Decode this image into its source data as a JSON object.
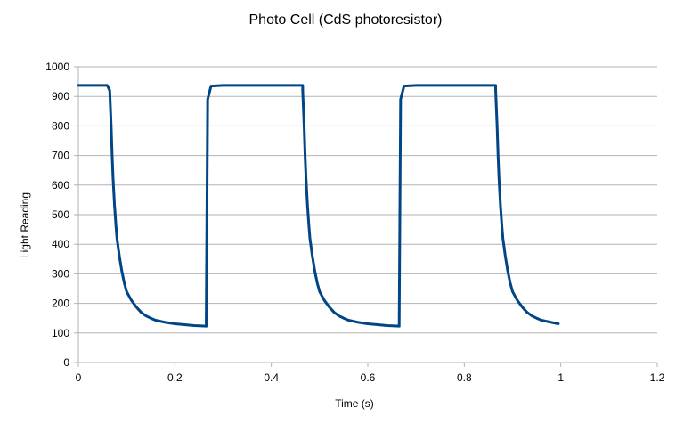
{
  "chart_data": {
    "type": "line",
    "title": "Photo Cell (CdS photoresistor)",
    "xlabel": "Time (s)",
    "ylabel": "Light Reading",
    "xlim": [
      0,
      1.2
    ],
    "ylim": [
      0,
      1000
    ],
    "x_ticks": [
      "0",
      "0.2",
      "0.4",
      "0.6",
      "0.8",
      "1",
      "1.2"
    ],
    "y_ticks": [
      "0",
      "100",
      "200",
      "300",
      "400",
      "500",
      "600",
      "700",
      "800",
      "900",
      "1000"
    ],
    "grid": "horizontal",
    "legend": "none",
    "series_color": "#004586",
    "series": [
      {
        "x": [
          0.0,
          0.02,
          0.04,
          0.06,
          0.065,
          0.068,
          0.07,
          0.072,
          0.075,
          0.078,
          0.08,
          0.085,
          0.09,
          0.095,
          0.1,
          0.11,
          0.12,
          0.13,
          0.14,
          0.15,
          0.16,
          0.18,
          0.2,
          0.22,
          0.24,
          0.265,
          0.265,
          0.268,
          0.275,
          0.3,
          0.35,
          0.4,
          0.44,
          0.465,
          0.465,
          0.468,
          0.47,
          0.472,
          0.475,
          0.478,
          0.48,
          0.485,
          0.49,
          0.495,
          0.5,
          0.51,
          0.52,
          0.53,
          0.54,
          0.55,
          0.56,
          0.58,
          0.6,
          0.62,
          0.64,
          0.665,
          0.665,
          0.668,
          0.675,
          0.7,
          0.75,
          0.8,
          0.84,
          0.865,
          0.865,
          0.868,
          0.87,
          0.872,
          0.875,
          0.878,
          0.88,
          0.885,
          0.89,
          0.895,
          0.9,
          0.91,
          0.92,
          0.93,
          0.94,
          0.95,
          0.96,
          0.98,
          0.995
        ],
        "y": [
          937,
          937,
          937,
          937,
          920,
          800,
          700,
          620,
          530,
          460,
          420,
          360,
          310,
          270,
          240,
          210,
          188,
          170,
          158,
          150,
          143,
          136,
          131,
          128,
          125,
          123,
          123,
          890,
          935,
          937,
          937,
          937,
          937,
          937,
          920,
          800,
          700,
          620,
          530,
          460,
          420,
          360,
          310,
          270,
          240,
          210,
          188,
          170,
          158,
          150,
          143,
          136,
          131,
          128,
          125,
          123,
          123,
          890,
          935,
          937,
          937,
          937,
          937,
          937,
          920,
          800,
          700,
          620,
          530,
          460,
          420,
          360,
          310,
          270,
          240,
          210,
          188,
          170,
          158,
          150,
          143,
          136,
          131
        ]
      }
    ]
  }
}
